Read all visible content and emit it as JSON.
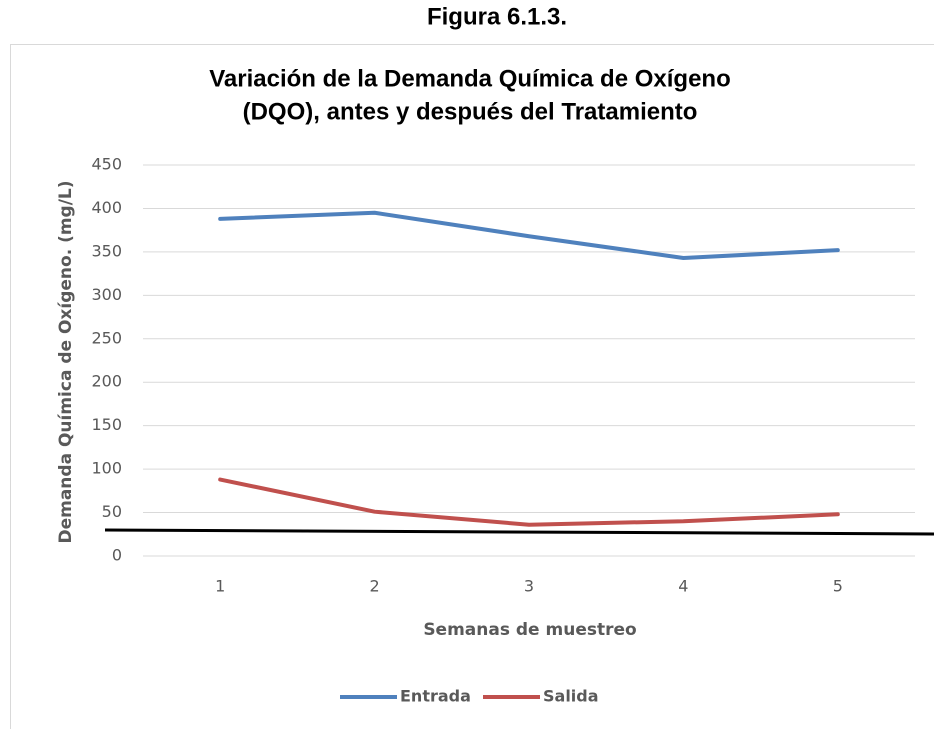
{
  "figure_label": "Figura 6.1.3.",
  "chart_data": {
    "type": "line",
    "title": [
      "Variación de la Demanda Química de Oxígeno",
      "(DQO), antes y después del Tratamiento"
    ],
    "x_label": "Semanas de muestreo",
    "y_label": "Demanda Química de Oxígeno. (mg/L)",
    "categories": [
      "1",
      "2",
      "3",
      "4",
      "5"
    ],
    "series": [
      {
        "name": "Entrada",
        "color": "#4f81bd",
        "values": [
          388,
          395,
          368,
          343,
          352
        ]
      },
      {
        "name": "Salida",
        "color": "#c0504d",
        "values": [
          88,
          51,
          36,
          40,
          48
        ]
      }
    ],
    "ylim": [
      0,
      450
    ],
    "yticks": [
      0,
      50,
      100,
      150,
      200,
      250,
      300,
      350,
      400,
      450
    ],
    "grid": true,
    "legend": "bottom"
  }
}
